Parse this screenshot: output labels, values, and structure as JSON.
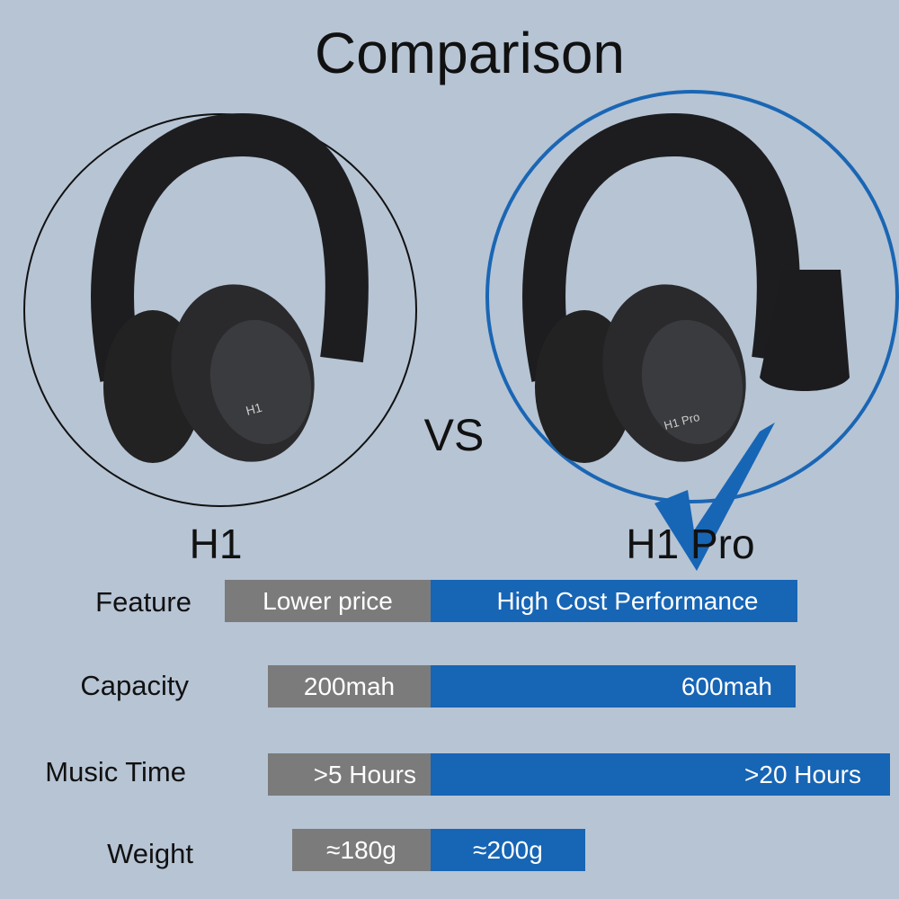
{
  "title": "Comparison",
  "vs": "VS",
  "products": [
    {
      "name": "H1",
      "badge": "H1"
    },
    {
      "name": "H1 Pro",
      "badge": "H1 Pro"
    }
  ],
  "rows": [
    {
      "label": "Feature",
      "left": "Lower price",
      "right": "High Cost Performance"
    },
    {
      "label": "Capacity",
      "left": "200mah",
      "right": "600mah"
    },
    {
      "label": "Music Time",
      "left": ">5 Hours",
      "right": ">20 Hours"
    },
    {
      "label": "Weight",
      "left": "≈180g",
      "right": "≈200g"
    }
  ]
}
